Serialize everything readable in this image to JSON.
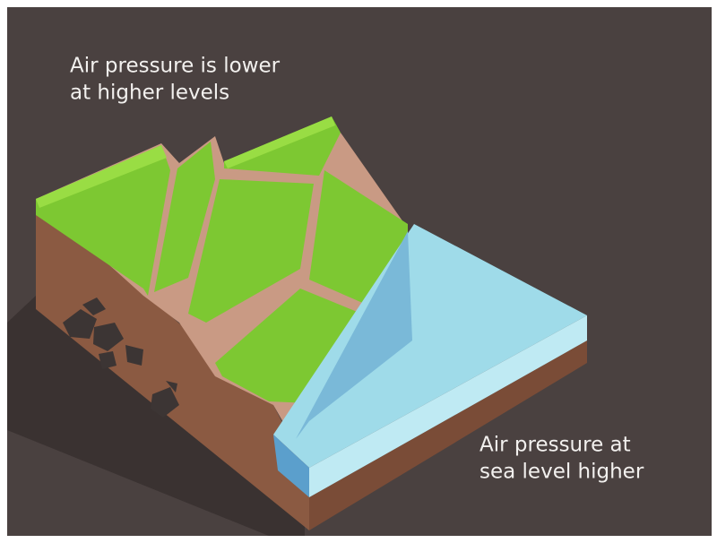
{
  "labels": {
    "top": [
      "Air pressure is lower",
      "at higher levels"
    ],
    "bottom": [
      "Air pressure at",
      "sea level higher"
    ]
  }
}
